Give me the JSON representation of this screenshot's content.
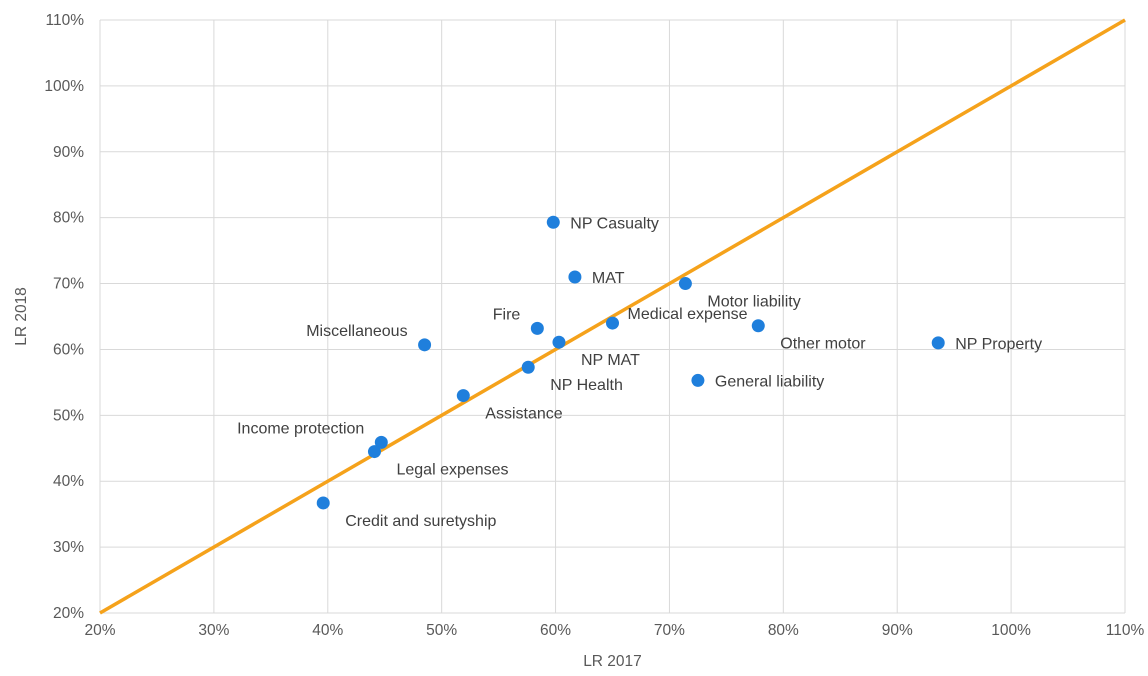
{
  "chart_data": {
    "type": "scatter",
    "xlabel": "LR 2017",
    "ylabel": "LR 2018",
    "xlim": [
      0.2,
      1.1
    ],
    "ylim": [
      0.2,
      1.1
    ],
    "x_ticks": [
      "20%",
      "30%",
      "40%",
      "50%",
      "60%",
      "70%",
      "80%",
      "90%",
      "100%",
      "110%"
    ],
    "y_ticks": [
      "20%",
      "30%",
      "40%",
      "50%",
      "60%",
      "70%",
      "80%",
      "90%",
      "100%",
      "110%"
    ],
    "grid": true,
    "legend": "none",
    "colors": {
      "points": "#1f7fdc",
      "reference_line": "#f5a21b",
      "grid": "#d9d9d9"
    },
    "reference_line": {
      "from": [
        0.2,
        0.2
      ],
      "to": [
        1.1,
        1.1
      ]
    },
    "points": [
      {
        "label": "NP Casualty",
        "x": 0.598,
        "y": 0.793,
        "label_pos": "right"
      },
      {
        "label": "MAT",
        "x": 0.617,
        "y": 0.71,
        "label_pos": "right"
      },
      {
        "label": "Motor liability",
        "x": 0.714,
        "y": 0.7,
        "label_pos": "below-right"
      },
      {
        "label": "Medical expense",
        "x": 0.65,
        "y": 0.64,
        "label_pos": "above-right"
      },
      {
        "label": "Fire",
        "x": 0.584,
        "y": 0.632,
        "label_pos": "above-left"
      },
      {
        "label": "Miscellaneous",
        "x": 0.485,
        "y": 0.607,
        "label_pos": "above-left"
      },
      {
        "label": "NP MAT",
        "x": 0.603,
        "y": 0.611,
        "label_pos": "below-right"
      },
      {
        "label": "Other motor",
        "x": 0.778,
        "y": 0.636,
        "label_pos": "below-right"
      },
      {
        "label": "NP Property",
        "x": 0.936,
        "y": 0.61,
        "label_pos": "right"
      },
      {
        "label": "NP Health",
        "x": 0.576,
        "y": 0.573,
        "label_pos": "below-right"
      },
      {
        "label": "General liability",
        "x": 0.725,
        "y": 0.553,
        "label_pos": "right"
      },
      {
        "label": "Assistance",
        "x": 0.519,
        "y": 0.53,
        "label_pos": "below-right"
      },
      {
        "label": "Income protection",
        "x": 0.447,
        "y": 0.459,
        "label_pos": "above-left"
      },
      {
        "label": "Legal expenses",
        "x": 0.441,
        "y": 0.445,
        "label_pos": "below-right"
      },
      {
        "label": "Credit and suretyship",
        "x": 0.396,
        "y": 0.367,
        "label_pos": "below-right"
      }
    ]
  }
}
